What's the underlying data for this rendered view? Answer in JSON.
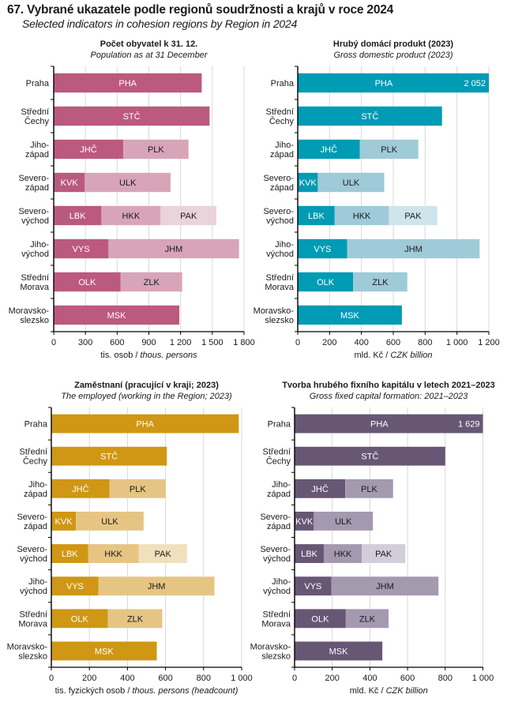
{
  "header": {
    "title": "67. Vybrané ukazatele podle regionů soudržnosti a krajů v roce 2024",
    "subtitle": "Selected indicators in cohesion regions by Region in 2024"
  },
  "chart_data": [
    {
      "id": "population",
      "type": "bar",
      "stacked": true,
      "orientation": "horizontal",
      "title": "Počet obyvatel k 31. 12.",
      "subtitle": "Population as at 31 December",
      "xlabel_cs": "tis. osob / ",
      "xlabel_en": "thous. persons",
      "xlim": [
        0,
        1800
      ],
      "xticks": [
        0,
        300,
        600,
        900,
        1200,
        1500,
        1800
      ],
      "xtick_labels": [
        "0",
        "300",
        "600",
        "900",
        "1 200",
        "1 500",
        "1 800"
      ],
      "grid": true,
      "colors": [
        "#bb5a7e",
        "#d8a5b8",
        "#ebd3dc"
      ],
      "text_colors": [
        "#ffffff",
        "#1a1a1a",
        "#1a1a1a"
      ],
      "categories": [
        {
          "label": [
            "Praha"
          ],
          "segments": [
            {
              "name": "PHA",
              "value": 1400
            }
          ]
        },
        {
          "label": [
            "Střední",
            "Čechy"
          ],
          "segments": [
            {
              "name": "STČ",
              "value": 1474
            }
          ]
        },
        {
          "label": [
            "Jiho-",
            "západ"
          ],
          "segments": [
            {
              "name": "JHČ",
              "value": 657
            },
            {
              "name": "PLK",
              "value": 618
            }
          ]
        },
        {
          "label": [
            "Severo-",
            "západ"
          ],
          "segments": [
            {
              "name": "KVK",
              "value": 294
            },
            {
              "name": "ULK",
              "value": 811
            }
          ]
        },
        {
          "label": [
            "Severo-",
            "východ"
          ],
          "segments": [
            {
              "name": "LBK",
              "value": 451
            },
            {
              "name": "HKK",
              "value": 560
            },
            {
              "name": "PAK",
              "value": 528
            }
          ]
        },
        {
          "label": [
            "Jiho-",
            "východ"
          ],
          "segments": [
            {
              "name": "VYS",
              "value": 518
            },
            {
              "name": "JHM",
              "value": 1235
            }
          ]
        },
        {
          "label": [
            "Střední",
            "Morava"
          ],
          "segments": [
            {
              "name": "OLK",
              "value": 633
            },
            {
              "name": "ZLK",
              "value": 582
            }
          ]
        },
        {
          "label": [
            "Moravsko-",
            "slezsko"
          ],
          "segments": [
            {
              "name": "MSK",
              "value": 1188
            }
          ]
        }
      ]
    },
    {
      "id": "gdp",
      "type": "bar",
      "stacked": true,
      "orientation": "horizontal",
      "title": "Hrubý domácí produkt (2023)",
      "subtitle": "Gross domestic product (2023)",
      "xlabel_cs": "mld. Kč / ",
      "xlabel_en": "CZK billion",
      "xlim": [
        0,
        1200
      ],
      "xticks": [
        0,
        200,
        400,
        600,
        800,
        1000,
        1200
      ],
      "xtick_labels": [
        "0",
        "200",
        "400",
        "600",
        "800",
        "1 000",
        "1 200"
      ],
      "grid": true,
      "colors": [
        "#009bb4",
        "#9fcad7",
        "#cfe5ec"
      ],
      "text_colors": [
        "#ffffff",
        "#1a1a1a",
        "#1a1a1a"
      ],
      "categories": [
        {
          "label": [
            "Praha"
          ],
          "segments": [
            {
              "name": "PHA",
              "value": 2052,
              "value_label": "2 052",
              "truncated": true
            }
          ]
        },
        {
          "label": [
            "Střední",
            "Čechy"
          ],
          "segments": [
            {
              "name": "STČ",
              "value": 906
            }
          ]
        },
        {
          "label": [
            "Jiho-",
            "západ"
          ],
          "segments": [
            {
              "name": "JHČ",
              "value": 390
            },
            {
              "name": "PLK",
              "value": 367
            }
          ]
        },
        {
          "label": [
            "Severo-",
            "západ"
          ],
          "segments": [
            {
              "name": "KVK",
              "value": 126
            },
            {
              "name": "ULK",
              "value": 417
            }
          ]
        },
        {
          "label": [
            "Severo-",
            "východ"
          ],
          "segments": [
            {
              "name": "LBK",
              "value": 232
            },
            {
              "name": "HKK",
              "value": 340
            },
            {
              "name": "PAK",
              "value": 304
            }
          ]
        },
        {
          "label": [
            "Jiho-",
            "východ"
          ],
          "segments": [
            {
              "name": "VYS",
              "value": 311
            },
            {
              "name": "JHM",
              "value": 831
            }
          ]
        },
        {
          "label": [
            "Střední",
            "Morava"
          ],
          "segments": [
            {
              "name": "OLK",
              "value": 348
            },
            {
              "name": "ZLK",
              "value": 340
            }
          ]
        },
        {
          "label": [
            "Moravsko-",
            "slezsko"
          ],
          "segments": [
            {
              "name": "MSK",
              "value": 654
            }
          ]
        }
      ]
    },
    {
      "id": "employed",
      "type": "bar",
      "stacked": true,
      "orientation": "horizontal",
      "title": "Zaměstnaní  (pracující  v kraji; 2023)",
      "subtitle": "The employed (working in the Region; 2023)",
      "xlabel_cs": "tis. fyzických  osob / ",
      "xlabel_en": "thous. persons (headcount)",
      "xlim": [
        0,
        1000
      ],
      "xticks": [
        0,
        200,
        400,
        600,
        800,
        1000
      ],
      "xtick_labels": [
        "0",
        "200",
        "400",
        "600",
        "800",
        "1 000"
      ],
      "grid": true,
      "colors": [
        "#cf9714",
        "#e6c584",
        "#f1e0bd"
      ],
      "text_colors": [
        "#ffffff",
        "#1a1a1a",
        "#1a1a1a"
      ],
      "categories": [
        {
          "label": [
            "Praha"
          ],
          "segments": [
            {
              "name": "PHA",
              "value": 985
            }
          ]
        },
        {
          "label": [
            "Střední",
            "Čechy"
          ],
          "segments": [
            {
              "name": "STČ",
              "value": 607
            }
          ]
        },
        {
          "label": [
            "Jiho-",
            "západ"
          ],
          "segments": [
            {
              "name": "JHČ",
              "value": 306
            },
            {
              "name": "PLK",
              "value": 295
            }
          ]
        },
        {
          "label": [
            "Severo-",
            "západ"
          ],
          "segments": [
            {
              "name": "KVK",
              "value": 129
            },
            {
              "name": "ULK",
              "value": 356
            }
          ]
        },
        {
          "label": [
            "Severo-",
            "východ"
          ],
          "segments": [
            {
              "name": "LBK",
              "value": 193
            },
            {
              "name": "HKK",
              "value": 266
            },
            {
              "name": "PAK",
              "value": 254
            }
          ]
        },
        {
          "label": [
            "Jiho-",
            "východ"
          ],
          "segments": [
            {
              "name": "VYS",
              "value": 248
            },
            {
              "name": "JHM",
              "value": 609
            }
          ]
        },
        {
          "label": [
            "Střední",
            "Morava"
          ],
          "segments": [
            {
              "name": "OLK",
              "value": 297
            },
            {
              "name": "ZLK",
              "value": 286
            }
          ]
        },
        {
          "label": [
            "Moravsko-",
            "slezsko"
          ],
          "segments": [
            {
              "name": "MSK",
              "value": 554
            }
          ]
        }
      ]
    },
    {
      "id": "gfcf",
      "type": "bar",
      "stacked": true,
      "orientation": "horizontal",
      "title": "Tvorba hrubého fixního  kapitálu v letech 2021–2023",
      "subtitle": "Gross fixed capital formation: 2021–2023",
      "xlabel_cs": "mld. Kč / ",
      "xlabel_en": "CZK billion",
      "xlim": [
        0,
        1000
      ],
      "xticks": [
        0,
        200,
        400,
        600,
        800,
        1000
      ],
      "xtick_labels": [
        "0",
        "200",
        "400",
        "600",
        "800",
        "1 000"
      ],
      "grid": true,
      "colors": [
        "#675775",
        "#a599b0",
        "#d3ccda"
      ],
      "text_colors": [
        "#ffffff",
        "#1a1a1a",
        "#1a1a1a"
      ],
      "categories": [
        {
          "label": [
            "Praha"
          ],
          "segments": [
            {
              "name": "PHA",
              "value": 1629,
              "value_label": "1 629",
              "truncated": true
            }
          ]
        },
        {
          "label": [
            "Střední",
            "Čechy"
          ],
          "segments": [
            {
              "name": "STČ",
              "value": 800
            }
          ]
        },
        {
          "label": [
            "Jiho-",
            "západ"
          ],
          "segments": [
            {
              "name": "JHČ",
              "value": 269
            },
            {
              "name": "PLK",
              "value": 254
            }
          ]
        },
        {
          "label": [
            "Severo-",
            "západ"
          ],
          "segments": [
            {
              "name": "KVK",
              "value": 102
            },
            {
              "name": "ULK",
              "value": 314
            }
          ]
        },
        {
          "label": [
            "Severo-",
            "východ"
          ],
          "segments": [
            {
              "name": "LBK",
              "value": 155
            },
            {
              "name": "HKK",
              "value": 202
            },
            {
              "name": "PAK",
              "value": 231
            }
          ]
        },
        {
          "label": [
            "Jiho-",
            "východ"
          ],
          "segments": [
            {
              "name": "VYS",
              "value": 196
            },
            {
              "name": "JHM",
              "value": 568
            }
          ]
        },
        {
          "label": [
            "Střední",
            "Morava"
          ],
          "segments": [
            {
              "name": "OLK",
              "value": 272
            },
            {
              "name": "ZLK",
              "value": 227
            }
          ]
        },
        {
          "label": [
            "Moravsko-",
            "slezsko"
          ],
          "segments": [
            {
              "name": "MSK",
              "value": 466
            }
          ]
        }
      ]
    }
  ]
}
